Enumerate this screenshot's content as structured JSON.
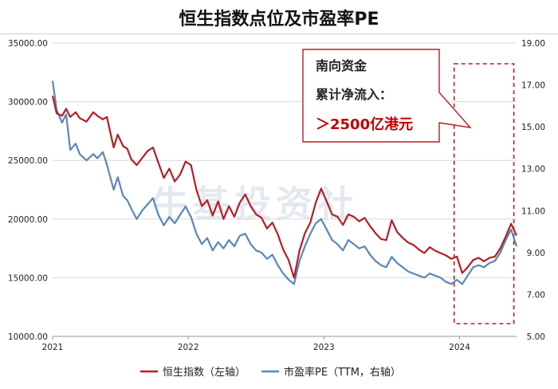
{
  "title": "恒生指数点位及市盈率PE",
  "callout": {
    "line1": "南向资金",
    "line2": "累计净流入：",
    "line3": "＞2500亿港元"
  },
  "watermark": "牛基投资社",
  "colors": {
    "hsi": "#b51e24",
    "pe": "#5b87b5",
    "box": "#b51e24"
  },
  "chart_data": {
    "type": "line",
    "x_ticks": [
      "2021",
      "2022",
      "2023",
      "2024"
    ],
    "y_left_ticks": [
      "10000.00",
      "15000.00",
      "20000.00",
      "25000.00",
      "30000.00",
      "35000.00"
    ],
    "y_right_ticks": [
      "5.00",
      "7.00",
      "9.00",
      "11.00",
      "13.00",
      "15.00",
      "17.00",
      "19.00"
    ],
    "ylim_left": [
      10000,
      35000
    ],
    "ylim_right": [
      5,
      19
    ],
    "x_range": [
      2021.0,
      2024.42
    ],
    "highlight_range": [
      2023.96,
      2024.4
    ],
    "series": [
      {
        "name": "恒生指数（左轴）",
        "axis": "left",
        "points": [
          [
            2021.0,
            30500
          ],
          [
            2021.03,
            29000
          ],
          [
            2021.07,
            28800
          ],
          [
            2021.1,
            29400
          ],
          [
            2021.13,
            28700
          ],
          [
            2021.17,
            29100
          ],
          [
            2021.2,
            28600
          ],
          [
            2021.25,
            28300
          ],
          [
            2021.3,
            29100
          ],
          [
            2021.33,
            28800
          ],
          [
            2021.37,
            28500
          ],
          [
            2021.4,
            28700
          ],
          [
            2021.45,
            26100
          ],
          [
            2021.48,
            27200
          ],
          [
            2021.52,
            26200
          ],
          [
            2021.55,
            26000
          ],
          [
            2021.58,
            25100
          ],
          [
            2021.62,
            24600
          ],
          [
            2021.66,
            25200
          ],
          [
            2021.7,
            25800
          ],
          [
            2021.74,
            26100
          ],
          [
            2021.78,
            24800
          ],
          [
            2021.82,
            23500
          ],
          [
            2021.86,
            24300
          ],
          [
            2021.9,
            23200
          ],
          [
            2021.94,
            23800
          ],
          [
            2021.98,
            24900
          ],
          [
            2022.02,
            24600
          ],
          [
            2022.06,
            22500
          ],
          [
            2022.1,
            21100
          ],
          [
            2022.14,
            21600
          ],
          [
            2022.18,
            20300
          ],
          [
            2022.22,
            21500
          ],
          [
            2022.26,
            20000
          ],
          [
            2022.3,
            21100
          ],
          [
            2022.34,
            20200
          ],
          [
            2022.38,
            21400
          ],
          [
            2022.42,
            22100
          ],
          [
            2022.46,
            21100
          ],
          [
            2022.5,
            20400
          ],
          [
            2022.54,
            20100
          ],
          [
            2022.58,
            19200
          ],
          [
            2022.62,
            19700
          ],
          [
            2022.66,
            18700
          ],
          [
            2022.7,
            17400
          ],
          [
            2022.74,
            16500
          ],
          [
            2022.78,
            15000
          ],
          [
            2022.82,
            17300
          ],
          [
            2022.86,
            18800
          ],
          [
            2022.9,
            19700
          ],
          [
            2022.94,
            21400
          ],
          [
            2022.98,
            22600
          ],
          [
            2023.02,
            21500
          ],
          [
            2023.06,
            20400
          ],
          [
            2023.1,
            20200
          ],
          [
            2023.14,
            19500
          ],
          [
            2023.18,
            20400
          ],
          [
            2023.22,
            20200
          ],
          [
            2023.26,
            19800
          ],
          [
            2023.3,
            20100
          ],
          [
            2023.34,
            19400
          ],
          [
            2023.38,
            18800
          ],
          [
            2023.42,
            18300
          ],
          [
            2023.46,
            18200
          ],
          [
            2023.5,
            19900
          ],
          [
            2023.54,
            18900
          ],
          [
            2023.58,
            18400
          ],
          [
            2023.62,
            18000
          ],
          [
            2023.66,
            17800
          ],
          [
            2023.7,
            17400
          ],
          [
            2023.74,
            17100
          ],
          [
            2023.78,
            17600
          ],
          [
            2023.82,
            17300
          ],
          [
            2023.86,
            17100
          ],
          [
            2023.9,
            16900
          ],
          [
            2023.94,
            16600
          ],
          [
            2023.98,
            16800
          ],
          [
            2024.02,
            15400
          ],
          [
            2024.06,
            15900
          ],
          [
            2024.1,
            16500
          ],
          [
            2024.14,
            16700
          ],
          [
            2024.18,
            16400
          ],
          [
            2024.22,
            16700
          ],
          [
            2024.26,
            16800
          ],
          [
            2024.3,
            17500
          ],
          [
            2024.34,
            18500
          ],
          [
            2024.38,
            19600
          ],
          [
            2024.42,
            18600
          ]
        ]
      },
      {
        "name": "市盈率PE（TTM，右轴）",
        "axis": "right",
        "points": [
          [
            2021.0,
            17.2
          ],
          [
            2021.03,
            15.8
          ],
          [
            2021.07,
            15.2
          ],
          [
            2021.1,
            15.6
          ],
          [
            2021.13,
            13.9
          ],
          [
            2021.17,
            14.2
          ],
          [
            2021.2,
            13.7
          ],
          [
            2021.25,
            13.4
          ],
          [
            2021.3,
            13.7
          ],
          [
            2021.33,
            13.5
          ],
          [
            2021.37,
            13.8
          ],
          [
            2021.4,
            13.2
          ],
          [
            2021.45,
            12.0
          ],
          [
            2021.48,
            12.6
          ],
          [
            2021.52,
            11.7
          ],
          [
            2021.55,
            11.5
          ],
          [
            2021.58,
            11.1
          ],
          [
            2021.62,
            10.6
          ],
          [
            2021.66,
            11.0
          ],
          [
            2021.7,
            11.3
          ],
          [
            2021.74,
            11.6
          ],
          [
            2021.78,
            10.8
          ],
          [
            2021.82,
            10.3
          ],
          [
            2021.86,
            10.7
          ],
          [
            2021.9,
            10.4
          ],
          [
            2021.94,
            10.8
          ],
          [
            2021.98,
            11.2
          ],
          [
            2022.02,
            10.7
          ],
          [
            2022.06,
            9.9
          ],
          [
            2022.1,
            9.4
          ],
          [
            2022.14,
            9.7
          ],
          [
            2022.18,
            9.1
          ],
          [
            2022.22,
            9.5
          ],
          [
            2022.26,
            9.2
          ],
          [
            2022.3,
            9.6
          ],
          [
            2022.34,
            9.3
          ],
          [
            2022.38,
            9.8
          ],
          [
            2022.42,
            9.9
          ],
          [
            2022.46,
            9.4
          ],
          [
            2022.5,
            9.1
          ],
          [
            2022.54,
            9.0
          ],
          [
            2022.58,
            8.7
          ],
          [
            2022.62,
            8.9
          ],
          [
            2022.66,
            8.4
          ],
          [
            2022.7,
            8.0
          ],
          [
            2022.74,
            7.7
          ],
          [
            2022.78,
            7.5
          ],
          [
            2022.82,
            8.6
          ],
          [
            2022.86,
            9.3
          ],
          [
            2022.9,
            9.9
          ],
          [
            2022.94,
            10.4
          ],
          [
            2022.98,
            10.6
          ],
          [
            2023.02,
            10.1
          ],
          [
            2023.06,
            9.6
          ],
          [
            2023.1,
            9.4
          ],
          [
            2023.14,
            9.1
          ],
          [
            2023.18,
            9.6
          ],
          [
            2023.22,
            9.4
          ],
          [
            2023.26,
            9.2
          ],
          [
            2023.3,
            9.3
          ],
          [
            2023.34,
            8.9
          ],
          [
            2023.38,
            8.6
          ],
          [
            2023.42,
            8.4
          ],
          [
            2023.46,
            8.3
          ],
          [
            2023.5,
            8.8
          ],
          [
            2023.54,
            8.5
          ],
          [
            2023.58,
            8.3
          ],
          [
            2023.62,
            8.1
          ],
          [
            2023.66,
            8.0
          ],
          [
            2023.7,
            7.9
          ],
          [
            2023.74,
            7.8
          ],
          [
            2023.78,
            8.0
          ],
          [
            2023.82,
            7.9
          ],
          [
            2023.86,
            7.8
          ],
          [
            2023.9,
            7.6
          ],
          [
            2023.94,
            7.5
          ],
          [
            2023.98,
            7.7
          ],
          [
            2024.02,
            7.5
          ],
          [
            2024.06,
            7.9
          ],
          [
            2024.1,
            8.3
          ],
          [
            2024.14,
            8.4
          ],
          [
            2024.18,
            8.3
          ],
          [
            2024.22,
            8.5
          ],
          [
            2024.26,
            8.6
          ],
          [
            2024.3,
            9.0
          ],
          [
            2024.34,
            9.6
          ],
          [
            2024.38,
            10.1
          ],
          [
            2024.42,
            9.3
          ]
        ]
      }
    ],
    "legend_placement": "bottom"
  }
}
